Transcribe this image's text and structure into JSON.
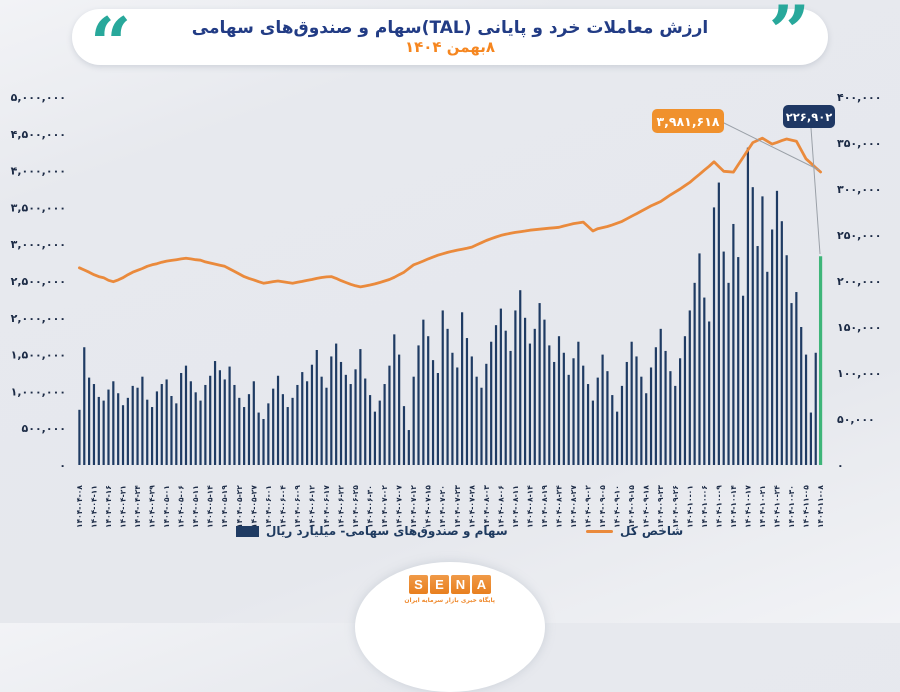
{
  "header": {
    "title": "ارزش معاملات خرد و پایانی (TAL)سهام و صندوق‌های سهامی",
    "date": "۸بهمن ۱۴۰۴",
    "title_color": "#223c85",
    "date_color": "#f6861f",
    "quote_color": "#28a89b"
  },
  "legend": {
    "bars": "سهام و صندوق‌های سهامی- میلیارد ریال",
    "line": "شاخص کل"
  },
  "footer": {
    "logo_letters": [
      "S",
      "E",
      "N",
      "A"
    ],
    "tagline": "پایگاه خبری بازار سرمایه ایران",
    "logo_color": "#ed8b33"
  },
  "chart_data": {
    "type": "combo-bar-line",
    "title": "ارزش معاملات خرد و پایانی (TAL)سهام و صندوق‌های سهامی - ۸بهمن ۱۴۰۴",
    "grid": false,
    "legend_position": "bottom",
    "left_axis": {
      "min": 0,
      "max": 5000000,
      "step": 500000,
      "ticks_text": [
        "۰",
        "۵۰۰,۰۰۰",
        "۱,۰۰۰,۰۰۰",
        "۱,۵۰۰,۰۰۰",
        "۲,۰۰۰,۰۰۰",
        "۲,۵۰۰,۰۰۰",
        "۳,۰۰۰,۰۰۰",
        "۳,۵۰۰,۰۰۰",
        "۴,۰۰۰,۰۰۰",
        "۴,۵۰۰,۰۰۰",
        "۵,۰۰۰,۰۰۰"
      ]
    },
    "right_axis": {
      "min": 0,
      "max": 400000,
      "step": 50000,
      "ticks_text": [
        "۰",
        "۵۰,۰۰۰",
        "۱۰۰,۰۰۰",
        "۱۵۰,۰۰۰",
        "۲۰۰,۰۰۰",
        "۲۵۰,۰۰۰",
        "۳۰۰,۰۰۰",
        "۳۵۰,۰۰۰",
        "۴۰۰,۰۰۰"
      ]
    },
    "x_label_every": 3,
    "x_labels": [
      "1404-04-08",
      "1404-04-11",
      "1404-04-16",
      "1404-04-21",
      "1404-04-24",
      "1404-04-29",
      "1404-05-01",
      "1404-05-06",
      "1404-05-11",
      "1404-05-14",
      "1404-05-19",
      "1404-05-22",
      "1404-05-27",
      "1404-06-01",
      "1404-06-04",
      "1404-06-09",
      "1404-06-12",
      "1404-06-17",
      "1404-06-22",
      "1404-06-25",
      "1404-06-30",
      "1404-07-02",
      "1404-07-07",
      "1404-07-12",
      "1404-07-15",
      "1404-07-20",
      "1404-07-23",
      "1404-07-28",
      "1404-08-03",
      "1404-08-06",
      "1404-08-11",
      "1404-08-14",
      "1404-08-19",
      "1404-08-24",
      "1404-08-27",
      "1404-09-02",
      "1404-09-05",
      "1404-09-10",
      "1404-09-15",
      "1404-09-18",
      "1404-09-23",
      "1404-09-26",
      "1404-10-01",
      "1404-10-06",
      "1404-10-09",
      "1404-10-14",
      "1404-10-17",
      "1404-10-21",
      "1404-10-24",
      "1404-10-30",
      "1404-11-05",
      "1404-11-08"
    ],
    "bar_series": {
      "name": "سهام و صندوق‌های سهامی- میلیارد ریال",
      "axis": "right",
      "color": "#1f3b63",
      "highlight_last_color": "#3eb579",
      "values": [
        60000,
        128000,
        95000,
        88000,
        74000,
        70000,
        82000,
        91000,
        78000,
        65000,
        73000,
        86000,
        84000,
        96000,
        71000,
        63000,
        80000,
        88000,
        93000,
        75000,
        67000,
        100000,
        108000,
        91000,
        79000,
        70000,
        87000,
        97000,
        113000,
        103000,
        93000,
        107000,
        87000,
        73000,
        63000,
        77000,
        91000,
        57000,
        50000,
        67000,
        83000,
        97000,
        77000,
        63000,
        73000,
        87000,
        101000,
        91000,
        109000,
        125000,
        96000,
        84000,
        118000,
        132000,
        112000,
        98000,
        88000,
        104000,
        126000,
        94000,
        76000,
        58000,
        70000,
        88000,
        108000,
        142000,
        120000,
        64000,
        38000,
        96000,
        130000,
        158000,
        140000,
        114000,
        100000,
        168000,
        148000,
        122000,
        106000,
        166000,
        138000,
        118000,
        96000,
        84000,
        110000,
        134000,
        152000,
        170000,
        146000,
        124000,
        168000,
        190000,
        160000,
        132000,
        148000,
        176000,
        158000,
        130000,
        112000,
        140000,
        122000,
        98000,
        116000,
        134000,
        108000,
        88000,
        70000,
        95000,
        120000,
        102000,
        76000,
        58000,
        86000,
        112000,
        134000,
        118000,
        96000,
        78000,
        106000,
        128000,
        148000,
        124000,
        102000,
        86000,
        116000,
        140000,
        168000,
        198000,
        230000,
        182000,
        156000,
        280000,
        307000,
        232000,
        198000,
        262000,
        226000,
        184000,
        345000,
        302000,
        238000,
        292000,
        210000,
        256000,
        298000,
        265000,
        228000,
        176000,
        188000,
        150000,
        120000,
        57000,
        122000,
        226902
      ]
    },
    "line_series": {
      "name": "شاخص کل",
      "axis": "left",
      "color": "#ea8a3c",
      "values": [
        2680000,
        2650000,
        2620000,
        2585000,
        2560000,
        2545000,
        2510000,
        2490000,
        2515000,
        2545000,
        2585000,
        2620000,
        2645000,
        2670000,
        2700000,
        2720000,
        2735000,
        2755000,
        2770000,
        2780000,
        2790000,
        2800000,
        2810000,
        2800000,
        2790000,
        2783000,
        2760000,
        2745000,
        2730000,
        2715000,
        2700000,
        2665000,
        2630000,
        2595000,
        2560000,
        2535000,
        2515000,
        2490000,
        2470000,
        2480000,
        2492000,
        2500000,
        2490000,
        2480000,
        2470000,
        2482000,
        2495000,
        2508000,
        2520000,
        2535000,
        2548000,
        2556000,
        2560000,
        2535000,
        2505000,
        2480000,
        2455000,
        2435000,
        2420000,
        2432000,
        2445000,
        2460000,
        2480000,
        2500000,
        2520000,
        2550000,
        2585000,
        2620000,
        2670000,
        2720000,
        2745000,
        2772000,
        2800000,
        2825000,
        2850000,
        2870000,
        2888000,
        2905000,
        2920000,
        2932000,
        2946000,
        2960000,
        2990000,
        3020000,
        3050000,
        3075000,
        3098000,
        3120000,
        3135000,
        3148000,
        3160000,
        3170000,
        3180000,
        3190000,
        3197000,
        3204000,
        3210000,
        3217000,
        3223000,
        3230000,
        3247000,
        3263000,
        3280000,
        3290000,
        3300000,
        3240000,
        3180000,
        3210000,
        3225000,
        3240000,
        3262000,
        3285000,
        3310000,
        3345000,
        3380000,
        3415000,
        3450000,
        3485000,
        3520000,
        3550000,
        3580000,
        3625000,
        3670000,
        3710000,
        3750000,
        3795000,
        3840000,
        3895000,
        3950000,
        4005000,
        4060000,
        4120000,
        4055000,
        3990000,
        3985000,
        3980000,
        4080000,
        4180000,
        4280000,
        4380000,
        4410000,
        4440000,
        4400000,
        4360000,
        4383000,
        4407000,
        4430000,
        4415000,
        4400000,
        4280000,
        4160000,
        4100000,
        4040000,
        3981618
      ]
    },
    "annotations": [
      {
        "series": "line",
        "text": "۳,۹۸۱,۶۱۸",
        "value": 3981618,
        "color": "#f0912d"
      },
      {
        "series": "bar",
        "text": "۲۲۶,۹۰۲",
        "value": 226902,
        "color": "#1f3864"
      }
    ]
  }
}
